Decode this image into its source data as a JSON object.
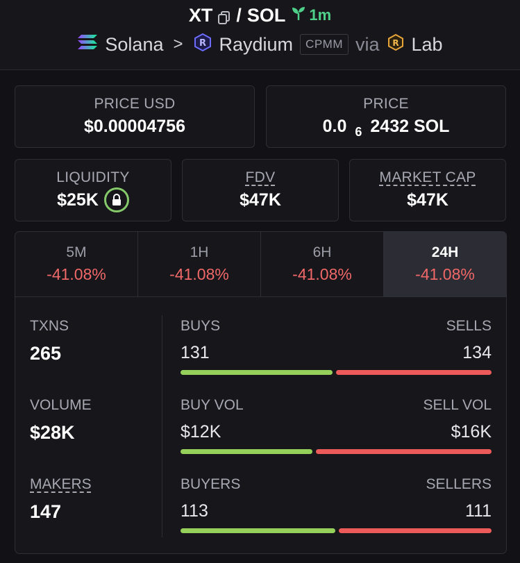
{
  "header": {
    "base_symbol": "XT",
    "slash": "/",
    "quote_symbol": "SOL",
    "age": "1m",
    "chain": "Solana",
    "dex": "Raydium",
    "pool_type": "CPMM",
    "via": "via",
    "launchpad": "Lab"
  },
  "price_usd": {
    "label": "PRICE USD",
    "value": "$0.00004756"
  },
  "price": {
    "label": "PRICE",
    "prefix": "0.0",
    "zeros": "6",
    "suffix": "2432 SOL"
  },
  "liquidity": {
    "label": "LIQUIDITY",
    "value": "$25K"
  },
  "fdv": {
    "label": "FDV",
    "value": "$47K"
  },
  "market_cap": {
    "label": "MARKET CAP",
    "value": "$47K"
  },
  "tabs": [
    {
      "label": "5M",
      "value": "-41.08%"
    },
    {
      "label": "1H",
      "value": "-41.08%"
    },
    {
      "label": "6H",
      "value": "-41.08%"
    },
    {
      "label": "24H",
      "value": "-41.08%"
    }
  ],
  "txns": {
    "label": "TXNS",
    "value": "265"
  },
  "volume": {
    "label": "VOLUME",
    "value": "$28K"
  },
  "makers": {
    "label": "MAKERS",
    "value": "147"
  },
  "buys_sells": {
    "left_label": "BUYS",
    "right_label": "SELLS",
    "left_value": "131",
    "right_value": "134",
    "left_share": 0.494
  },
  "vol_split": {
    "left_label": "BUY VOL",
    "right_label": "SELL VOL",
    "left_value": "$12K",
    "right_value": "$16K",
    "left_share": 0.43
  },
  "buyers_sellers": {
    "left_label": "BUYERS",
    "right_label": "SELLERS",
    "left_value": "113",
    "right_value": "111",
    "left_share": 0.504
  },
  "colors": {
    "positive": "#95d05b",
    "negative": "#ec5a5a",
    "age": "#4fd08a"
  }
}
